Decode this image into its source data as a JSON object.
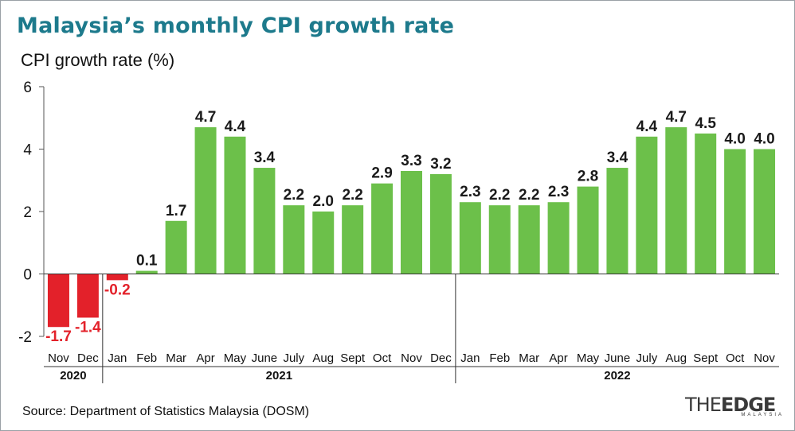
{
  "title": "Malaysia’s monthly CPI growth rate",
  "source": "Source: Department of Statistics Malaysia (DOSM)",
  "logo": {
    "main_left": "THE",
    "main_right": "EDGE",
    "sub": "MALAYSIA"
  },
  "colors": {
    "title": "#1d7a8c",
    "positive": "#6cc04a",
    "negative": "#e3212a",
    "axis": "#555555"
  },
  "chart_data": {
    "type": "bar",
    "ylabel": "CPI growth rate (%)",
    "ylim": [
      -2,
      6
    ],
    "yticks": [
      -2,
      0,
      2,
      4,
      6
    ],
    "grid": false,
    "categories": [
      "Nov",
      "Dec",
      "Jan",
      "Feb",
      "Mar",
      "Apr",
      "May",
      "June",
      "July",
      "Aug",
      "Sept",
      "Oct",
      "Nov",
      "Dec",
      "Jan",
      "Feb",
      "Mar",
      "Apr",
      "May",
      "June",
      "July",
      "Aug",
      "Sept",
      "Oct",
      "Nov"
    ],
    "values": [
      -1.7,
      -1.4,
      -0.2,
      0.1,
      1.7,
      4.7,
      4.4,
      3.4,
      2.2,
      2.0,
      2.2,
      2.9,
      3.3,
      3.2,
      2.3,
      2.2,
      2.2,
      2.3,
      2.8,
      3.4,
      4.4,
      4.7,
      4.5,
      4.0,
      4.0
    ],
    "labels": [
      "-1.7",
      "-1.4",
      "-0.2",
      "0.1",
      "1.7",
      "4.7",
      "4.4",
      "3.4",
      "2.2",
      "2.0",
      "2.2",
      "2.9",
      "3.3",
      "3.2",
      "2.3",
      "2.2",
      "2.2",
      "2.3",
      "2.8",
      "3.4",
      "4.4",
      "4.7",
      "4.5",
      "4.0",
      "4.0"
    ],
    "year_groups": [
      {
        "year": "2020",
        "count": 2
      },
      {
        "year": "2021",
        "count": 12
      },
      {
        "year": "2022",
        "count": 11
      }
    ]
  }
}
